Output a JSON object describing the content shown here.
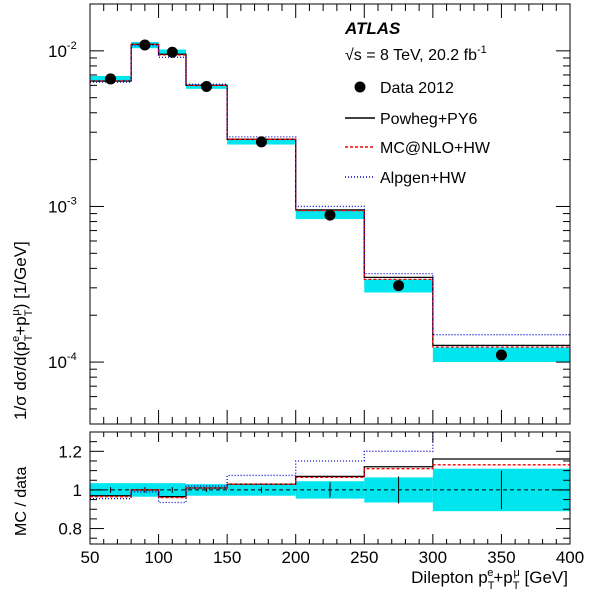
{
  "chart_data": {
    "type": "step",
    "experiment": "ATLAS",
    "energy_label": "√s = 8 TeV, 20.2 fb",
    "energy_label_sup": "-1",
    "xlabel": "Dilepton p",
    "xlabel_tail": " [GeV]",
    "ylabel_top": "1/σ dσ/d(p",
    "ylabel_tail": ") [1/GeV]",
    "ratio_ylabel": "MC / data",
    "bin_edges": [
      50,
      80,
      100,
      120,
      150,
      200,
      250,
      300,
      400
    ],
    "xlim": [
      50,
      400
    ],
    "ylim": [
      4e-05,
      0.02
    ],
    "ylog": true,
    "x_ticks": [
      "50",
      "100",
      "150",
      "200",
      "250",
      "300",
      "350",
      "400"
    ],
    "y_ticks": [
      {
        "base": "10",
        "exp": "-2"
      },
      {
        "base": "10",
        "exp": "-3"
      },
      {
        "base": "10",
        "exp": "-4"
      }
    ],
    "ratio_ylim": [
      0.72,
      1.3
    ],
    "ratio_ticks": [
      "0.8",
      "1",
      "1.2"
    ],
    "legend": {
      "data": "Data 2012",
      "powheg": "Powheg+PY6",
      "mcatnlo": "MC@NLO+HW",
      "alpgen": "Alpgen+HW"
    },
    "data": {
      "x": [
        65,
        90,
        110,
        135,
        175,
        225,
        275,
        350
      ],
      "y": [
        0.0066,
        0.0109,
        0.0098,
        0.0059,
        0.0026,
        0.00088,
        0.00031,
        0.000111
      ],
      "band_low": [
        0.0063,
        0.0104,
        0.0094,
        0.0057,
        0.0025,
        0.00083,
        0.00028,
        0.0001
      ],
      "band_high": [
        0.0069,
        0.0114,
        0.0102,
        0.0061,
        0.0027,
        0.00094,
        0.00034,
        0.000124
      ]
    },
    "series": [
      {
        "key": "powheg",
        "values": [
          0.0064,
          0.011,
          0.0095,
          0.006,
          0.0027,
          0.00095,
          0.00035,
          0.000128
        ],
        "color": "#000000",
        "dash": ""
      },
      {
        "key": "mcatnlo",
        "values": [
          0.0064,
          0.011,
          0.0094,
          0.006,
          0.0027,
          0.00094,
          0.00034,
          0.000125
        ],
        "color": "#ff0000",
        "dash": "3,2"
      },
      {
        "key": "alpgen",
        "values": [
          0.0063,
          0.0108,
          0.0091,
          0.0061,
          0.0028,
          0.001,
          0.00037,
          0.00015
        ],
        "color": "#0000cc",
        "dash": "1,2"
      }
    ],
    "ratio": {
      "band_low": [
        0.965,
        0.965,
        0.965,
        0.97,
        0.97,
        0.955,
        0.935,
        0.89
      ],
      "band_high": [
        1.035,
        1.035,
        1.035,
        1.03,
        1.03,
        1.045,
        1.065,
        1.11
      ],
      "err_low": [
        0.985,
        0.985,
        0.985,
        0.99,
        0.985,
        0.96,
        0.93,
        0.9
      ],
      "err_high": [
        1.015,
        1.015,
        1.015,
        1.01,
        1.015,
        1.04,
        1.07,
        1.1
      ],
      "series": [
        {
          "key": "powheg",
          "values": [
            0.97,
            1.0,
            0.965,
            1.01,
            1.03,
            1.07,
            1.12,
            1.16
          ]
        },
        {
          "key": "mcatnlo",
          "values": [
            0.965,
            1.0,
            0.96,
            1.01,
            1.03,
            1.065,
            1.11,
            1.13
          ]
        },
        {
          "key": "alpgen",
          "values": [
            0.955,
            0.99,
            0.935,
            1.02,
            1.075,
            1.15,
            1.2,
            1.35
          ]
        }
      ]
    }
  }
}
